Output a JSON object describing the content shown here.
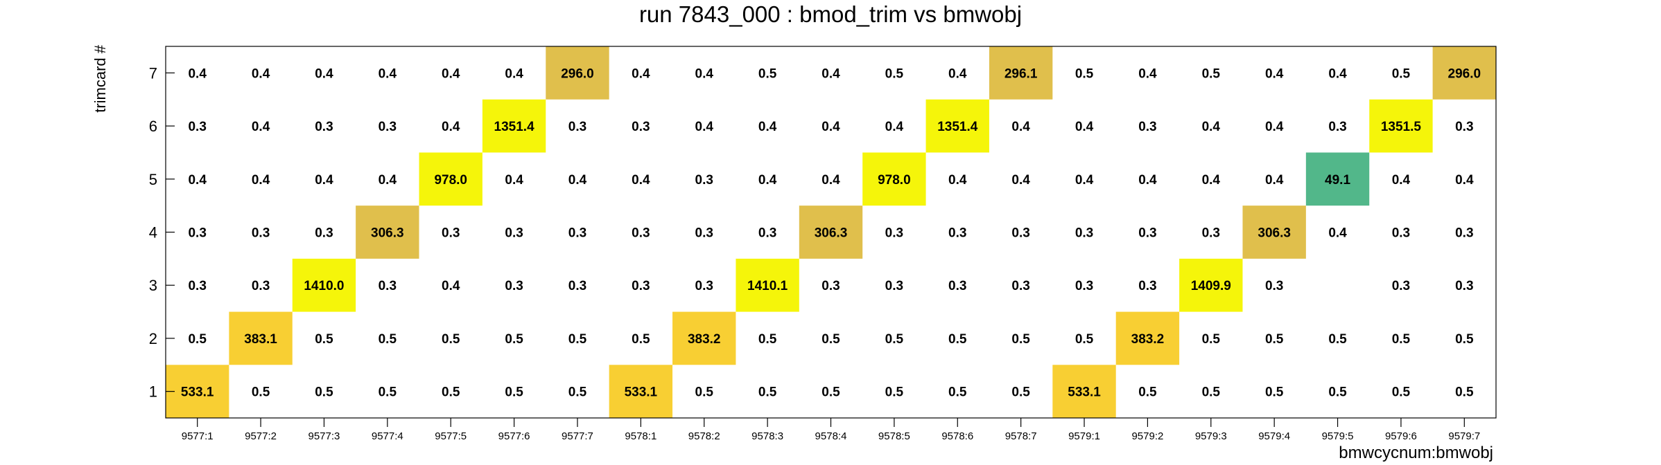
{
  "chart_data": {
    "type": "heatmap",
    "title": "run 7843_000 : bmod_trim vs bmwobj",
    "xlabel": "bmwcycnum:bmwobj",
    "ylabel": "trimcard #",
    "x_categories": [
      "9577:1",
      "9577:2",
      "9577:3",
      "9577:4",
      "9577:5",
      "9577:6",
      "9577:7",
      "9578:1",
      "9578:2",
      "9578:3",
      "9578:4",
      "9578:5",
      "9578:6",
      "9578:7",
      "9579:1",
      "9579:2",
      "9579:3",
      "9579:4",
      "9579:5",
      "9579:6",
      "9579:7"
    ],
    "y_categories": [
      "1",
      "2",
      "3",
      "4",
      "5",
      "6",
      "7"
    ],
    "grid": false,
    "legend": "none",
    "colors": {
      "very_high": "#f5f50a",
      "high": "#f8cf33",
      "mid": "#e0bf4c",
      "low": "#52b78a",
      "axis": "#000000"
    },
    "values": [
      [
        "533.1",
        "0.5",
        "0.5",
        "0.5",
        "0.5",
        "0.5",
        "0.5",
        "533.1",
        "0.5",
        "0.5",
        "0.5",
        "0.5",
        "0.5",
        "0.5",
        "533.1",
        "0.5",
        "0.5",
        "0.5",
        "0.5",
        "0.5",
        "0.5"
      ],
      [
        "0.5",
        "383.1",
        "0.5",
        "0.5",
        "0.5",
        "0.5",
        "0.5",
        "0.5",
        "383.2",
        "0.5",
        "0.5",
        "0.5",
        "0.5",
        "0.5",
        "0.5",
        "383.2",
        "0.5",
        "0.5",
        "0.5",
        "0.5",
        "0.5"
      ],
      [
        "0.3",
        "0.3",
        "1410.0",
        "0.3",
        "0.4",
        "0.3",
        "0.3",
        "0.3",
        "0.3",
        "1410.1",
        "0.3",
        "0.3",
        "0.3",
        "0.3",
        "0.3",
        "0.3",
        "1409.9",
        "0.3",
        "",
        "0.3",
        "0.3"
      ],
      [
        "0.3",
        "0.3",
        "0.3",
        "306.3",
        "0.3",
        "0.3",
        "0.3",
        "0.3",
        "0.3",
        "0.3",
        "306.3",
        "0.3",
        "0.3",
        "0.3",
        "0.3",
        "0.3",
        "0.3",
        "306.3",
        "0.4",
        "0.3",
        "0.3"
      ],
      [
        "0.4",
        "0.4",
        "0.4",
        "0.4",
        "978.0",
        "0.4",
        "0.4",
        "0.4",
        "0.3",
        "0.4",
        "0.4",
        "978.0",
        "0.4",
        "0.4",
        "0.4",
        "0.4",
        "0.4",
        "0.4",
        "49.1",
        "0.4",
        "0.4"
      ],
      [
        "0.3",
        "0.4",
        "0.3",
        "0.3",
        "0.4",
        "1351.4",
        "0.3",
        "0.3",
        "0.4",
        "0.4",
        "0.4",
        "0.4",
        "1351.4",
        "0.4",
        "0.4",
        "0.3",
        "0.4",
        "0.4",
        "0.3",
        "1351.5",
        "0.3"
      ],
      [
        "0.4",
        "0.4",
        "0.4",
        "0.4",
        "0.4",
        "0.4",
        "296.0",
        "0.4",
        "0.4",
        "0.5",
        "0.4",
        "0.5",
        "0.4",
        "296.1",
        "0.5",
        "0.4",
        "0.5",
        "0.4",
        "0.4",
        "0.5",
        "296.0"
      ]
    ]
  }
}
